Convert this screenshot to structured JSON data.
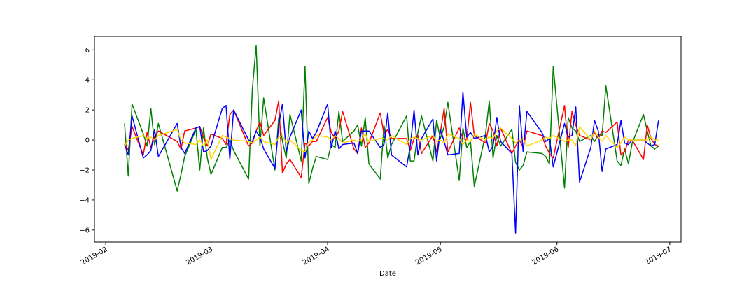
{
  "chart_data": {
    "type": "line",
    "xlabel": "Date",
    "ylabel": "",
    "title": "",
    "x_range": [
      "2019-01-29",
      "2019-07-04"
    ],
    "ylim": [
      -6.8,
      6.9
    ],
    "x_ticks": [
      "2019-02-01",
      "2019-03-01",
      "2019-04-01",
      "2019-05-01",
      "2019-06-01",
      "2019-07-01"
    ],
    "x_tick_labels": [
      "2019-02",
      "2019-03",
      "2019-04",
      "2019-05",
      "2019-06",
      "2019-07"
    ],
    "y_ticks": [
      -6,
      -4,
      -2,
      0,
      2,
      4,
      6
    ],
    "y_tick_labels": [
      "−6",
      "−4",
      "−2",
      "0",
      "2",
      "4",
      "6"
    ],
    "grid": false,
    "legend": "none",
    "series": [
      {
        "color": "#008000",
        "x": [
          "2019-02-06",
          "2019-02-07",
          "2019-02-08",
          "2019-02-11",
          "2019-02-12",
          "2019-02-13",
          "2019-02-14",
          "2019-02-15",
          "2019-02-20",
          "2019-02-21",
          "2019-02-22",
          "2019-02-25",
          "2019-02-26",
          "2019-02-27",
          "2019-02-28",
          "2019-03-01",
          "2019-03-04",
          "2019-03-05",
          "2019-03-06",
          "2019-03-07",
          "2019-03-11",
          "2019-03-12",
          "2019-03-13",
          "2019-03-14",
          "2019-03-15",
          "2019-03-18",
          "2019-03-19",
          "2019-03-20",
          "2019-03-21",
          "2019-03-22",
          "2019-03-25",
          "2019-03-26",
          "2019-03-27",
          "2019-03-28",
          "2019-03-29",
          "2019-04-01",
          "2019-04-02",
          "2019-04-03",
          "2019-04-04",
          "2019-04-05",
          "2019-04-08",
          "2019-04-09",
          "2019-04-10",
          "2019-04-11",
          "2019-04-12",
          "2019-04-15",
          "2019-04-16",
          "2019-04-17",
          "2019-04-18",
          "2019-04-22",
          "2019-04-23",
          "2019-04-24",
          "2019-04-25",
          "2019-04-26",
          "2019-04-29",
          "2019-04-30",
          "2019-05-01",
          "2019-05-02",
          "2019-05-03",
          "2019-05-06",
          "2019-05-07",
          "2019-05-08",
          "2019-05-09",
          "2019-05-10",
          "2019-05-13",
          "2019-05-14",
          "2019-05-15",
          "2019-05-16",
          "2019-05-17",
          "2019-05-20",
          "2019-05-21",
          "2019-05-22",
          "2019-05-23",
          "2019-05-24",
          "2019-05-28",
          "2019-05-29",
          "2019-05-30",
          "2019-05-31",
          "2019-06-03",
          "2019-06-04",
          "2019-06-05",
          "2019-06-06",
          "2019-06-07",
          "2019-06-10",
          "2019-06-11",
          "2019-06-12",
          "2019-06-13",
          "2019-06-14",
          "2019-06-17",
          "2019-06-18",
          "2019-06-19",
          "2019-06-20",
          "2019-06-21",
          "2019-06-24",
          "2019-06-25",
          "2019-06-26",
          "2019-06-27",
          "2019-06-28"
        ],
        "values": [
          1.1,
          -2.4,
          2.4,
          0.4,
          -0.4,
          2.1,
          -0.3,
          1.1,
          -3.4,
          -2.3,
          -1.1,
          0.7,
          -2.0,
          0.8,
          -1.2,
          -2.3,
          -0.5,
          -0.5,
          0.0,
          -0.7,
          -2.6,
          3.4,
          6.3,
          -0.4,
          2.8,
          -2.0,
          1.5,
          -0.1,
          -1.2,
          1.7,
          -1.4,
          4.9,
          -2.9,
          -1.9,
          -1.1,
          -1.3,
          -0.3,
          -0.5,
          1.9,
          -0.1,
          0.6,
          1.0,
          -0.4,
          1.5,
          -1.6,
          -2.6,
          1.0,
          -1.2,
          -0.3,
          1.6,
          -1.4,
          -1.4,
          0.5,
          1.6,
          -1.4,
          1.3,
          0.1,
          0.9,
          2.5,
          -2.7,
          0.8,
          -0.5,
          -0.1,
          -3.1,
          0.4,
          2.6,
          -1.2,
          0.3,
          -0.4,
          0.7,
          -1.5,
          -2.0,
          -1.7,
          -0.8,
          -0.9,
          -1.1,
          -1.6,
          4.9,
          -3.2,
          1.5,
          0.8,
          0.6,
          -0.1,
          0.3,
          -0.1,
          0.4,
          0.3,
          3.6,
          -1.4,
          -1.7,
          -0.6,
          -1.6,
          -0.2,
          1.7,
          0.6,
          -0.4,
          -0.6,
          -0.4
        ],
        "x_clean": [
          "2019-02-06",
          "2019-02-07",
          "2019-02-08",
          "2019-02-11",
          "2019-02-12",
          "2019-02-13",
          "2019-02-15",
          "2019-02-18",
          "2019-02-21",
          "2019-02-25",
          "2019-02-26",
          "2019-02-27",
          "2019-02-28",
          "2019-03-01",
          "2019-03-04",
          "2019-03-05",
          "2019-03-06",
          "2019-03-07",
          "2019-03-08",
          "2019-03-11",
          "2019-03-13",
          "2019-03-14",
          "2019-03-15",
          "2019-03-18",
          "2019-03-19",
          "2019-03-20",
          "2019-03-21",
          "2019-03-22",
          "2019-03-25",
          "2019-03-26",
          "2019-03-27",
          "2019-03-28",
          "2019-03-29",
          "2019-04-01",
          "2019-04-02",
          "2019-04-03",
          "2019-04-04",
          "2019-04-05",
          "2019-04-08",
          "2019-04-09",
          "2019-04-10",
          "2019-04-11",
          "2019-04-12",
          "2019-04-15",
          "2019-04-16",
          "2019-04-17",
          "2019-04-18",
          "2019-04-22",
          "2019-04-23",
          "2019-04-24",
          "2019-04-25",
          "2019-04-26",
          "2019-04-29",
          "2019-04-30",
          "2019-05-01",
          "2019-05-02",
          "2019-05-03",
          "2019-05-06",
          "2019-05-07",
          "2019-05-08",
          "2019-05-09",
          "2019-05-10",
          "2019-05-13",
          "2019-05-14",
          "2019-05-15",
          "2019-05-16",
          "2019-05-17",
          "2019-05-20",
          "2019-05-21",
          "2019-05-22",
          "2019-05-23",
          "2019-05-24",
          "2019-05-28",
          "2019-05-29",
          "2019-05-30",
          "2019-05-31",
          "2019-06-03",
          "2019-06-04",
          "2019-06-05",
          "2019-06-06",
          "2019-06-07",
          "2019-06-10",
          "2019-06-11",
          "2019-06-12",
          "2019-06-13",
          "2019-06-14",
          "2019-06-17",
          "2019-06-18",
          "2019-06-19",
          "2019-06-20",
          "2019-06-21",
          "2019-06-24",
          "2019-06-25",
          "2019-06-26",
          "2019-06-27",
          "2019-06-28"
        ]
      },
      {
        "color": "#ff0000",
        "x": [
          "2019-02-06",
          "2019-02-07",
          "2019-02-08",
          "2019-02-11",
          "2019-02-12",
          "2019-02-13",
          "2019-02-14",
          "2019-02-15",
          "2019-02-20",
          "2019-02-21",
          "2019-02-22",
          "2019-02-25",
          "2019-02-26",
          "2019-02-27",
          "2019-02-28",
          "2019-03-01",
          "2019-03-04",
          "2019-03-05",
          "2019-03-06",
          "2019-03-07",
          "2019-03-11",
          "2019-03-12",
          "2019-03-13",
          "2019-03-14",
          "2019-03-15",
          "2019-03-18",
          "2019-03-19",
          "2019-03-20",
          "2019-03-21",
          "2019-03-22",
          "2019-03-25",
          "2019-03-26",
          "2019-03-27",
          "2019-03-28",
          "2019-03-29",
          "2019-04-01",
          "2019-04-02",
          "2019-04-03",
          "2019-04-04",
          "2019-04-05",
          "2019-04-08",
          "2019-04-09",
          "2019-04-10",
          "2019-04-11",
          "2019-04-12",
          "2019-04-15",
          "2019-04-16",
          "2019-04-17",
          "2019-04-18",
          "2019-04-22",
          "2019-04-23",
          "2019-04-24",
          "2019-04-25",
          "2019-04-26",
          "2019-04-29",
          "2019-04-30",
          "2019-05-01",
          "2019-05-02",
          "2019-05-03",
          "2019-05-06",
          "2019-05-07",
          "2019-05-08",
          "2019-05-09",
          "2019-05-10",
          "2019-05-13",
          "2019-05-14",
          "2019-05-15",
          "2019-05-16",
          "2019-05-17",
          "2019-05-20",
          "2019-05-21",
          "2019-05-22",
          "2019-05-23",
          "2019-05-24",
          "2019-05-28",
          "2019-05-29",
          "2019-05-30",
          "2019-05-31",
          "2019-06-03",
          "2019-06-04",
          "2019-06-05",
          "2019-06-06",
          "2019-06-07",
          "2019-06-10",
          "2019-06-11",
          "2019-06-12",
          "2019-06-13",
          "2019-06-14",
          "2019-06-17",
          "2019-06-18",
          "2019-06-19",
          "2019-06-20",
          "2019-06-21",
          "2019-06-24",
          "2019-06-25",
          "2019-06-26",
          "2019-06-27",
          "2019-06-28"
        ],
        "values": [
          -0.2,
          -0.7,
          0.9,
          -1.0,
          0.5,
          -0.5,
          0.2,
          0.6,
          -0.1,
          -0.6,
          0.6,
          0.8,
          0.9,
          0.2,
          -0.4,
          0.4,
          0.1,
          -0.3,
          1.7,
          2.0,
          -0.4,
          -0.2,
          0.6,
          1.2,
          0.3,
          1.3,
          2.6,
          -2.2,
          -1.6,
          -1.3,
          -2.5,
          -0.2,
          -0.4,
          -0.1,
          -0.1,
          1.5,
          0.5,
          0.1,
          0.6,
          1.9,
          -0.6,
          -0.9,
          0.8,
          -0.5,
          -0.2,
          1.8,
          0.4,
          0.7,
          0.1,
          0.1,
          -0.7,
          0.1,
          0.3,
          -0.9,
          0.3,
          -0.8,
          0.5,
          2.1,
          -0.8,
          0.8,
          0.1,
          0.0,
          2.5,
          0.3,
          -0.2,
          1.1,
          0.6,
          -0.4,
          0.8,
          -0.9,
          -0.4,
          0.0,
          -0.5,
          0.6,
          0.3,
          -0.4,
          -0.9,
          -1.2,
          2.3,
          -0.5,
          1.9,
          1.0,
          0.3,
          0.0,
          0.5,
          0.1,
          0.6,
          0.5,
          1.2,
          -1.0,
          -0.8,
          0.0,
          0.0,
          -1.3,
          1.0,
          0.1,
          -0.3,
          -0.4
        ]
      },
      {
        "color": "#0000ff",
        "x": [
          "2019-02-06",
          "2019-02-07",
          "2019-02-08",
          "2019-02-11",
          "2019-02-12",
          "2019-02-13",
          "2019-02-14",
          "2019-02-15",
          "2019-02-20",
          "2019-02-21",
          "2019-02-22",
          "2019-02-25",
          "2019-02-26",
          "2019-02-27",
          "2019-02-28",
          "2019-03-01",
          "2019-03-04",
          "2019-03-05",
          "2019-03-06",
          "2019-03-07",
          "2019-03-11",
          "2019-03-12",
          "2019-03-13",
          "2019-03-14",
          "2019-03-15",
          "2019-03-18",
          "2019-03-19",
          "2019-03-20",
          "2019-03-21",
          "2019-03-22",
          "2019-03-25",
          "2019-03-26",
          "2019-03-27",
          "2019-03-28",
          "2019-03-29",
          "2019-04-01",
          "2019-04-02",
          "2019-04-03",
          "2019-04-04",
          "2019-04-05",
          "2019-04-08",
          "2019-04-09",
          "2019-04-10",
          "2019-04-11",
          "2019-04-12",
          "2019-04-15",
          "2019-04-16",
          "2019-04-17",
          "2019-04-18",
          "2019-04-22",
          "2019-04-23",
          "2019-04-24",
          "2019-04-25",
          "2019-04-26",
          "2019-04-29",
          "2019-04-30",
          "2019-05-01",
          "2019-05-02",
          "2019-05-03",
          "2019-05-06",
          "2019-05-07",
          "2019-05-08",
          "2019-05-09",
          "2019-05-10",
          "2019-05-13",
          "2019-05-14",
          "2019-05-15",
          "2019-05-16",
          "2019-05-17",
          "2019-05-20",
          "2019-05-21",
          "2019-05-22",
          "2019-05-23",
          "2019-05-24",
          "2019-05-28",
          "2019-05-29",
          "2019-05-30",
          "2019-05-31",
          "2019-06-03",
          "2019-06-04",
          "2019-06-05",
          "2019-06-06",
          "2019-06-07",
          "2019-06-10",
          "2019-06-11",
          "2019-06-12",
          "2019-06-13",
          "2019-06-14",
          "2019-06-17",
          "2019-06-18",
          "2019-06-19",
          "2019-06-20",
          "2019-06-21",
          "2019-06-24",
          "2019-06-25",
          "2019-06-26",
          "2019-06-27",
          "2019-06-28"
        ],
        "values": [
          -0.3,
          -1.0,
          1.6,
          -1.2,
          -1.0,
          -0.7,
          0.7,
          -1.1,
          1.1,
          -0.5,
          -0.9,
          0.8,
          0.9,
          -0.8,
          -0.7,
          -0.4,
          2.1,
          2.3,
          -1.3,
          2.0,
          0.0,
          -0.1,
          0.6,
          0.2,
          -0.6,
          -1.9,
          1.0,
          2.4,
          -0.8,
          0.2,
          2.0,
          -1.2,
          0.6,
          0.1,
          0.5,
          2.4,
          -0.5,
          0.6,
          -0.6,
          -0.3,
          -0.2,
          -0.9,
          0.6,
          0.6,
          0.6,
          -0.5,
          -0.3,
          1.8,
          -1.0,
          -1.8,
          -0.4,
          2.0,
          -1.0,
          0.1,
          1.4,
          -1.4,
          0.7,
          -0.1,
          -1.0,
          -0.9,
          3.2,
          0.2,
          0.5,
          0.1,
          0.3,
          -0.8,
          -0.4,
          1.5,
          -0.1,
          -0.9,
          -6.2,
          2.3,
          -0.8,
          1.9,
          0.5,
          -0.1,
          0.1,
          -1.8,
          1.1,
          0.2,
          0.3,
          2.2,
          -2.8,
          -0.5,
          1.3,
          0.6,
          -2.1,
          -0.6,
          -0.3,
          1.3,
          -0.2,
          -0.3,
          0.0,
          0.0,
          -0.2,
          -0.4,
          -0.3,
          1.3
        ]
      },
      {
        "color": "#ffd700",
        "x": [
          "2019-02-06",
          "2019-02-07",
          "2019-02-08",
          "2019-02-11",
          "2019-02-12",
          "2019-02-13",
          "2019-02-14",
          "2019-02-15",
          "2019-02-20",
          "2019-02-21",
          "2019-02-22",
          "2019-02-25",
          "2019-02-26",
          "2019-02-27",
          "2019-02-28",
          "2019-03-01",
          "2019-03-04",
          "2019-03-05",
          "2019-03-06",
          "2019-03-07",
          "2019-03-11",
          "2019-03-12",
          "2019-03-13",
          "2019-03-14",
          "2019-03-15",
          "2019-03-18",
          "2019-03-19",
          "2019-03-20",
          "2019-03-21",
          "2019-03-22",
          "2019-03-25",
          "2019-03-26",
          "2019-03-27",
          "2019-03-28",
          "2019-03-29",
          "2019-04-01",
          "2019-04-02",
          "2019-04-03",
          "2019-04-04",
          "2019-04-05",
          "2019-04-08",
          "2019-04-09",
          "2019-04-10",
          "2019-04-11",
          "2019-04-12",
          "2019-04-15",
          "2019-04-16",
          "2019-04-17",
          "2019-04-18",
          "2019-04-22",
          "2019-04-23",
          "2019-04-24",
          "2019-04-25",
          "2019-04-26",
          "2019-04-29",
          "2019-04-30",
          "2019-05-01",
          "2019-05-02",
          "2019-05-03",
          "2019-05-06",
          "2019-05-07",
          "2019-05-08",
          "2019-05-09",
          "2019-05-10",
          "2019-05-13",
          "2019-05-14",
          "2019-05-15",
          "2019-05-16",
          "2019-05-17",
          "2019-05-20",
          "2019-05-21",
          "2019-05-22",
          "2019-05-23",
          "2019-05-24",
          "2019-05-28",
          "2019-05-29",
          "2019-05-30",
          "2019-05-31",
          "2019-06-03",
          "2019-06-04",
          "2019-06-05",
          "2019-06-06",
          "2019-06-07",
          "2019-06-10",
          "2019-06-11",
          "2019-06-12",
          "2019-06-13",
          "2019-06-14",
          "2019-06-17",
          "2019-06-18",
          "2019-06-19",
          "2019-06-20",
          "2019-06-21",
          "2019-06-24",
          "2019-06-25",
          "2019-06-26",
          "2019-06-27",
          "2019-06-28"
        ],
        "values": [
          -0.4,
          0.0,
          0.1,
          0.3,
          0.1,
          0.2,
          0.0,
          0.3,
          0.7,
          0.0,
          -0.2,
          -0.3,
          0.0,
          -0.4,
          0.0,
          -1.3,
          0.3,
          0.2,
          0.1,
          0.0,
          -0.1,
          -0.2,
          0.0,
          0.2,
          -0.1,
          -0.3,
          0.2,
          0.3,
          -0.2,
          0.0,
          -0.7,
          -0.8,
          -0.1,
          0.0,
          0.3,
          0.2,
          0.0,
          0.3,
          0.1,
          -0.2,
          0.0,
          -0.1,
          0.0,
          0.4,
          -0.1,
          0.1,
          0.1,
          0.0,
          0.3,
          -0.3,
          0.1,
          0.2,
          0.1,
          0.0,
          0.3,
          -0.1,
          0.0,
          -0.2,
          0.4,
          0.1,
          -0.3,
          0.0,
          -0.1,
          0.4,
          0.0,
          0.2,
          0.1,
          0.6,
          0.8,
          0.1,
          -0.2,
          0.0,
          0.1,
          -0.4,
          0.0,
          0.2,
          0.1,
          0.3,
          -0.1,
          0.0,
          0.0,
          -0.4,
          0.9,
          0.0,
          0.6,
          0.2,
          -0.1,
          0.3,
          -0.5,
          -0.2,
          0.2,
          0.0,
          0.0,
          0.0,
          0.0,
          0.2,
          0.0,
          0.0
        ]
      }
    ]
  }
}
